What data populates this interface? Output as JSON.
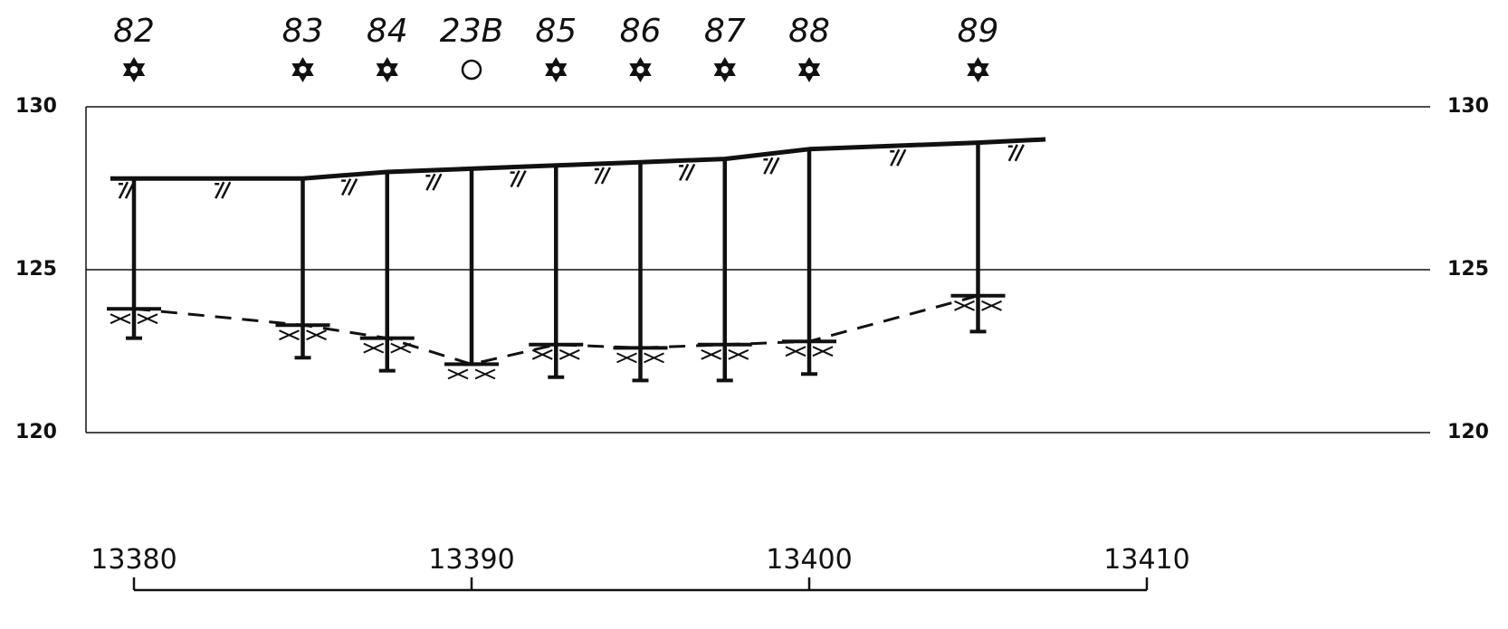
{
  "profile": {
    "elevation_ticks": [
      {
        "value": 130,
        "label": "130"
      },
      {
        "value": 125,
        "label": "125"
      },
      {
        "value": 120,
        "label": "120"
      }
    ],
    "chainage_ticks": [
      {
        "value": 13380,
        "label": "13380"
      },
      {
        "value": 13390,
        "label": "13390"
      },
      {
        "value": 13400,
        "label": "13400"
      },
      {
        "value": 13410,
        "label": "13410"
      }
    ],
    "colors": {
      "ink": "#111111",
      "grid": "#111111"
    },
    "points": [
      {
        "label": "82",
        "symbol": "star-of-david-icon",
        "chainage": 13380.0,
        "surface": 127.8,
        "water": 123.8,
        "bottom": 122.9
      },
      {
        "label": "83",
        "symbol": "star-of-david-icon",
        "chainage": 13385.0,
        "surface": 127.8,
        "water": 123.3,
        "bottom": 122.3
      },
      {
        "label": "84",
        "symbol": "star-of-david-icon",
        "chainage": 13387.5,
        "surface": 128.0,
        "water": 122.9,
        "bottom": 121.9
      },
      {
        "label": "23B",
        "symbol": "circle-icon",
        "chainage": 13390.0,
        "surface": 128.1,
        "water": 122.1,
        "bottom": 122.1
      },
      {
        "label": "85",
        "symbol": "star-of-david-icon",
        "chainage": 13392.5,
        "surface": 128.2,
        "water": 122.7,
        "bottom": 121.7
      },
      {
        "label": "86",
        "symbol": "star-of-david-icon",
        "chainage": 13395.0,
        "surface": 128.3,
        "water": 122.6,
        "bottom": 121.6
      },
      {
        "label": "87",
        "symbol": "star-of-david-icon",
        "chainage": 13397.5,
        "surface": 128.4,
        "water": 122.7,
        "bottom": 121.6
      },
      {
        "label": "88",
        "symbol": "star-of-david-icon",
        "chainage": 13400.0,
        "surface": 128.7,
        "water": 122.8,
        "bottom": 121.8
      },
      {
        "label": "89",
        "symbol": "star-of-david-icon",
        "chainage": 13405.0,
        "surface": 128.9,
        "water": 124.2,
        "bottom": 123.1
      }
    ],
    "surface_end": {
      "chainage": 13407.0,
      "elevation": 129.0
    }
  }
}
